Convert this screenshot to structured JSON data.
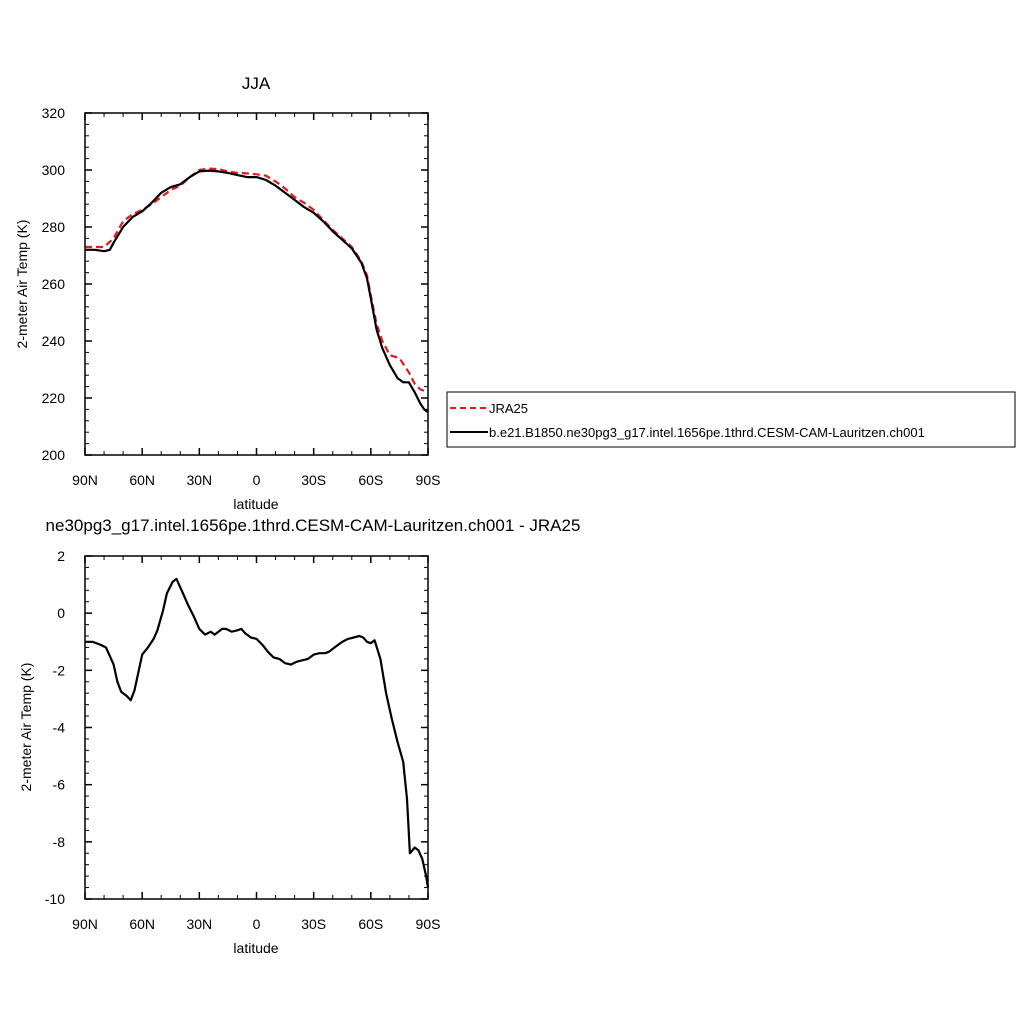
{
  "chart_data": [
    {
      "type": "line",
      "title": "JJA",
      "xlabel": "latitude",
      "ylabel": "2-meter Air Temp (K)",
      "xlim": [
        90,
        -90
      ],
      "ylim": [
        200,
        320
      ],
      "x_tick_values": [
        90,
        60,
        30,
        0,
        -30,
        -60,
        -90
      ],
      "x_tick_labels": [
        "90N",
        "60N",
        "30N",
        "0",
        "30S",
        "60S",
        "90S"
      ],
      "y_tick_values": [
        200,
        220,
        240,
        260,
        280,
        300,
        320
      ],
      "y_tick_labels": [
        "200",
        "220",
        "240",
        "260",
        "280",
        "300",
        "320"
      ],
      "legend_position": "right",
      "grid": false,
      "series": [
        {
          "name": "JRA25",
          "color": "#e8181c",
          "dash": "dashed",
          "x": [
            90,
            85,
            80,
            75,
            70,
            65,
            60,
            55,
            50,
            45,
            40,
            35,
            30,
            25,
            20,
            15,
            10,
            5,
            0,
            -5,
            -10,
            -15,
            -20,
            -25,
            -30,
            -35,
            -40,
            -45,
            -50,
            -55,
            -58,
            -60,
            -63,
            -66,
            -70,
            -75,
            -80,
            -83,
            -86,
            -90
          ],
          "y": [
            273,
            273,
            273,
            276,
            282,
            284.5,
            286,
            288,
            290.5,
            293,
            294.5,
            297.5,
            300,
            300.5,
            300.3,
            299.5,
            299,
            298.8,
            298.5,
            298,
            296,
            293.5,
            290.5,
            288.5,
            286,
            282.5,
            279,
            276,
            273,
            268,
            263,
            256,
            246,
            240,
            235,
            234,
            229,
            225,
            223,
            222
          ]
        },
        {
          "name": "b.e21.B1850.ne30pg3_g17.intel.1656pe.1thrd.CESM-CAM-Lauritzen.ch001",
          "color": "#000000",
          "dash": "solid",
          "x": [
            90,
            85,
            80,
            77,
            75,
            70,
            65,
            60,
            55,
            50,
            45,
            40,
            35,
            30,
            25,
            20,
            15,
            10,
            5,
            0,
            -5,
            -10,
            -15,
            -20,
            -25,
            -30,
            -35,
            -40,
            -45,
            -50,
            -55,
            -58,
            -60,
            -63,
            -66,
            -70,
            -74,
            -77,
            -80,
            -83,
            -86,
            -88,
            -90
          ],
          "y": [
            272,
            272,
            271.5,
            272,
            274.5,
            280,
            283.5,
            285.5,
            288.5,
            292,
            294,
            295,
            297.5,
            299.5,
            299.8,
            299.5,
            299,
            298.2,
            297.5,
            297.5,
            296.5,
            294.5,
            292,
            289.5,
            287,
            285,
            282,
            278.5,
            275.5,
            272.5,
            267.5,
            262,
            255,
            244,
            237.5,
            231.5,
            227,
            225.5,
            225.5,
            222,
            218,
            216,
            215
          ]
        }
      ]
    },
    {
      "type": "line",
      "title": "ne30pg3_g17.intel.1656pe.1thrd.CESM-CAM-Lauritzen.ch001 - JRA25",
      "xlabel": "latitude",
      "ylabel": "2-meter Air Temp (K)",
      "xlim": [
        90,
        -90
      ],
      "ylim": [
        -10,
        2
      ],
      "x_tick_values": [
        90,
        60,
        30,
        0,
        -30,
        -60,
        -90
      ],
      "x_tick_labels": [
        "90N",
        "60N",
        "30N",
        "0",
        "30S",
        "60S",
        "90S"
      ],
      "y_tick_values": [
        -10,
        -8,
        -6,
        -4,
        -2,
        0,
        2
      ],
      "y_tick_labels": [
        "-10",
        "-8",
        "-6",
        "-4",
        "-2",
        "0",
        "2"
      ],
      "grid": false,
      "series": [
        {
          "color": "#000000",
          "dash": "solid",
          "x": [
            90,
            86,
            82,
            79,
            77,
            75,
            73,
            71,
            68,
            66,
            64,
            60,
            57,
            54,
            52,
            49,
            47,
            44,
            42,
            39,
            36,
            33,
            30,
            27,
            24,
            22,
            20,
            18,
            16,
            13,
            10,
            8,
            6,
            3,
            0,
            -3,
            -6,
            -9,
            -12,
            -15,
            -18,
            -21,
            -24,
            -27,
            -30,
            -33,
            -36,
            -38,
            -42,
            -45,
            -48,
            -51,
            -54,
            -56,
            -58,
            -60,
            -62,
            -65,
            -68,
            -71,
            -74,
            -77,
            -79,
            -80.5,
            -83,
            -85,
            -87,
            -89,
            -90
          ],
          "y": [
            -1,
            -1,
            -1.1,
            -1.2,
            -1.5,
            -1.8,
            -2.4,
            -2.75,
            -2.9,
            -3.05,
            -2.7,
            -1.45,
            -1.2,
            -0.9,
            -0.6,
            0.1,
            0.7,
            1.1,
            1.2,
            0.75,
            0.3,
            -0.1,
            -0.55,
            -0.75,
            -0.65,
            -0.75,
            -0.65,
            -0.55,
            -0.55,
            -0.65,
            -0.6,
            -0.55,
            -0.7,
            -0.85,
            -0.9,
            -1.1,
            -1.35,
            -1.55,
            -1.6,
            -1.75,
            -1.8,
            -1.7,
            -1.65,
            -1.6,
            -1.45,
            -1.4,
            -1.4,
            -1.35,
            -1.15,
            -1.0,
            -0.9,
            -0.85,
            -0.8,
            -0.85,
            -1.0,
            -1.05,
            -0.95,
            -1.6,
            -2.8,
            -3.7,
            -4.5,
            -5.2,
            -6.5,
            -8.4,
            -8.2,
            -8.3,
            -8.6,
            -9.2,
            -9.6
          ]
        }
      ]
    }
  ],
  "legend": {
    "entries": [
      {
        "label": "JRA25",
        "color": "#e8181c",
        "dash": "dashed"
      },
      {
        "label": "b.e21.B1850.ne30pg3_g17.intel.1656pe.1thrd.CESM-CAM-Lauritzen.ch001",
        "color": "#000000",
        "dash": "solid"
      }
    ]
  }
}
